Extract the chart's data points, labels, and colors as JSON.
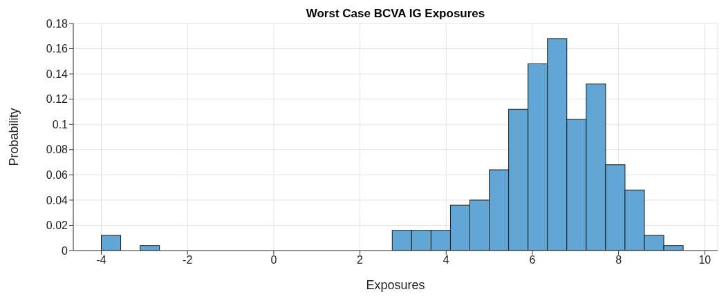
{
  "chart_data": {
    "type": "histogram",
    "title": "Worst Case BCVA IG Exposures",
    "xlabel": "Exposures",
    "ylabel": "Probability",
    "bins": [
      -4,
      -3.55,
      -3.1,
      -2.65,
      -2.2,
      -1.75,
      -1.3,
      -0.85,
      -0.4,
      0.05,
      0.5,
      0.95,
      1.4,
      1.85,
      2.3,
      2.75,
      3.2,
      3.65,
      4.1,
      4.55,
      5,
      5.45,
      5.9,
      6.35,
      6.8,
      7.25,
      7.7,
      8.15,
      8.6,
      9.05,
      9.5
    ],
    "values": [
      0.012,
      0,
      0.004,
      0,
      0,
      0,
      0,
      0,
      0,
      0,
      0,
      0,
      0,
      0,
      0,
      0.016,
      0.016,
      0.016,
      0.036,
      0.04,
      0.064,
      0.112,
      0.148,
      0.168,
      0.104,
      0.132,
      0.068,
      0.048,
      0.012,
      0.004
    ],
    "color": "#62a6d6",
    "xlim": [
      -4.65,
      10.3
    ],
    "xticks": [
      -4,
      -2,
      0,
      2,
      4,
      6,
      8,
      10
    ],
    "ylim": [
      0,
      0.18
    ],
    "yticks": [
      0,
      0.02,
      0.04,
      0.06,
      0.08,
      0.1,
      0.12,
      0.14,
      0.16,
      0.18
    ],
    "grid": true
  }
}
